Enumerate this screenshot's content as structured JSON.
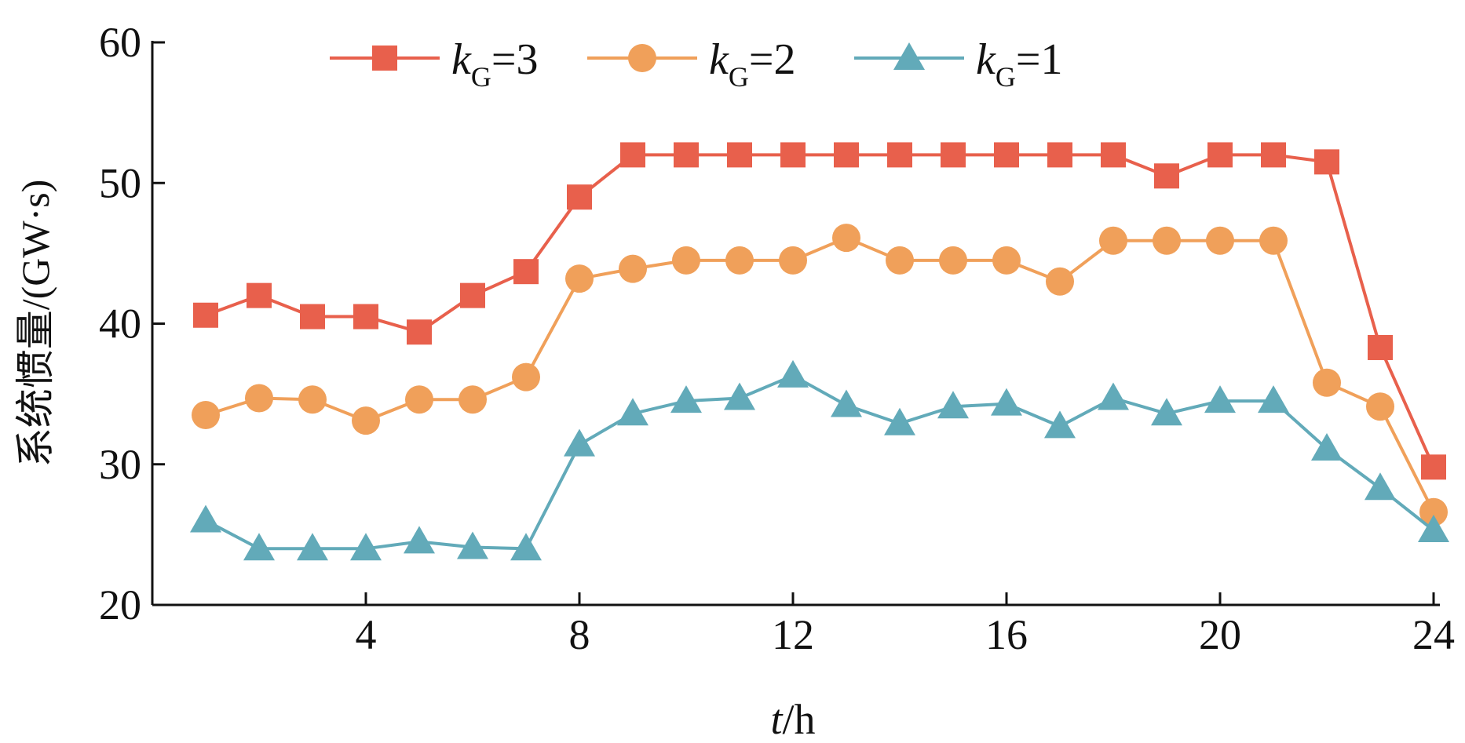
{
  "chart_data": {
    "type": "line",
    "title": "",
    "xlabel": {
      "italic": "t",
      "rest": "/h"
    },
    "ylabel": "系统惯量/(GW·s)",
    "xlim": [
      0,
      24
    ],
    "ylim": [
      20,
      60
    ],
    "xticks": [
      4,
      8,
      12,
      16,
      20,
      24
    ],
    "yticks": [
      20,
      30,
      40,
      50,
      60
    ],
    "grid": false,
    "legend_position": "top",
    "x": [
      1,
      2,
      3,
      4,
      5,
      6,
      7,
      8,
      9,
      10,
      11,
      12,
      13,
      14,
      15,
      16,
      17,
      18,
      19,
      20,
      21,
      22,
      23,
      24
    ],
    "series": [
      {
        "name": "kG=3",
        "label_main": "k",
        "label_sub": "G",
        "label_suffix": "=3",
        "color": "#E8604C",
        "marker": "square",
        "values": [
          40.6,
          42.0,
          40.5,
          40.5,
          39.4,
          42.0,
          43.7,
          49.0,
          52.0,
          52.0,
          52.0,
          52.0,
          52.0,
          52.0,
          52.0,
          52.0,
          52.0,
          52.0,
          50.5,
          52.0,
          52.0,
          51.5,
          38.3,
          29.8
        ]
      },
      {
        "name": "kG=2",
        "label_main": "k",
        "label_sub": "G",
        "label_suffix": "=2",
        "color": "#F0A05A",
        "marker": "circle",
        "values": [
          33.5,
          34.7,
          34.6,
          33.1,
          34.6,
          34.6,
          36.2,
          43.2,
          43.9,
          44.5,
          44.5,
          44.5,
          46.1,
          44.5,
          44.5,
          44.5,
          43.0,
          45.9,
          45.9,
          45.9,
          45.9,
          35.8,
          34.1,
          26.6
        ]
      },
      {
        "name": "kG=1",
        "label_main": "k",
        "label_sub": "G",
        "label_suffix": "=1",
        "color": "#62AAB9",
        "marker": "triangle",
        "values": [
          26.0,
          24.0,
          24.0,
          24.0,
          24.5,
          24.1,
          24.0,
          31.4,
          33.6,
          34.5,
          34.7,
          36.3,
          34.2,
          32.9,
          34.1,
          34.3,
          32.7,
          34.7,
          33.6,
          34.5,
          34.5,
          31.1,
          28.3,
          25.3
        ]
      }
    ]
  }
}
